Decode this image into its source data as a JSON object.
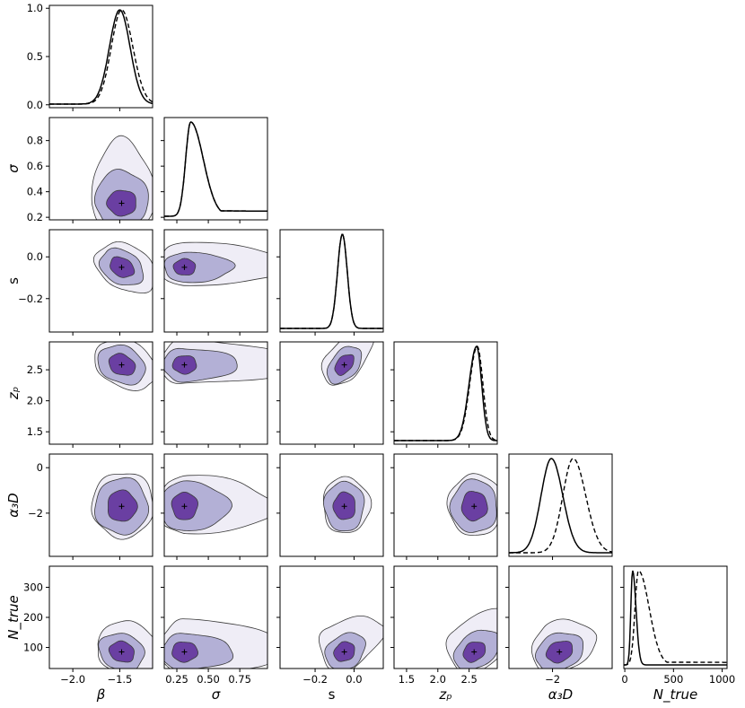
{
  "chart_data": {
    "type": "corner",
    "title": "",
    "parameters": [
      {
        "key": "beta",
        "label": "β",
        "range": [
          -2.25,
          -1.15
        ],
        "ticks": [
          -2.0,
          -1.5
        ],
        "tick_labels": [
          "−2.0",
          "−1.5"
        ],
        "best": -1.48,
        "peak": -1.48,
        "width": 0.11
      },
      {
        "key": "sigma",
        "label": "σ",
        "range": [
          0.15,
          0.97
        ],
        "ticks": [
          0.25,
          0.5,
          0.75
        ],
        "tick_labels": [
          "0.25",
          "0.50",
          "0.75"
        ],
        "best": 0.31,
        "peak": 0.36,
        "width": 0.06
      },
      {
        "key": "s",
        "label": "s",
        "range": [
          -0.38,
          0.15
        ],
        "ticks": [
          -0.2,
          0.0
        ],
        "tick_labels": [
          "−0.2",
          "0.0"
        ],
        "best": -0.05,
        "peak": -0.05,
        "width": 0.03
      },
      {
        "key": "zp",
        "label": "zₚ",
        "range": [
          1.3,
          2.95
        ],
        "ticks": [
          1.5,
          2.0,
          2.5
        ],
        "tick_labels": [
          "1.5",
          "2.0",
          "2.5"
        ],
        "best": 2.58,
        "peak": 2.62,
        "width": 0.08
      },
      {
        "key": "a3d",
        "label": "α₃D",
        "range": [
          -3.9,
          0.6
        ],
        "ticks": [
          -2.0
        ],
        "tick_labels": [
          "−2"
        ],
        "best": -1.7,
        "peak": -2.05,
        "width": 0.35
      },
      {
        "key": "ntrue",
        "label": "N_true",
        "range": [
          -10,
          1050
        ],
        "ticks": [
          0,
          500,
          1000
        ],
        "tick_labels": [
          "0",
          "500",
          "1000"
        ],
        "best": 85,
        "peak": 90,
        "width": 25
      }
    ],
    "y_axes": [
      {
        "param": "sigma",
        "range": [
          0.18,
          0.98
        ],
        "ticks": [
          0.2,
          0.4,
          0.6,
          0.8
        ],
        "tick_labels": [
          "0.2",
          "0.4",
          "0.6",
          "0.8"
        ]
      },
      {
        "param": "s",
        "range": [
          -0.36,
          0.13
        ],
        "ticks": [
          -0.2,
          0.0
        ],
        "tick_labels": [
          "−0.2",
          "0.0"
        ]
      },
      {
        "param": "zp",
        "range": [
          1.3,
          2.95
        ],
        "ticks": [
          1.5,
          2.0,
          2.5
        ],
        "tick_labels": [
          "1.5",
          "2.0",
          "2.5"
        ]
      },
      {
        "param": "a3d",
        "range": [
          -3.9,
          0.6
        ],
        "ticks": [
          -2,
          0
        ],
        "tick_labels": [
          "−2",
          "0"
        ]
      },
      {
        "param": "ntrue",
        "range": [
          30,
          370
        ],
        "ticks": [
          100,
          200,
          300
        ],
        "tick_labels": [
          "100",
          "200",
          "300"
        ]
      }
    ],
    "diag0_axis": {
      "range": [
        -0.03,
        1.03
      ],
      "ticks": [
        0.0,
        0.5,
        1.0
      ],
      "tick_labels": [
        "0.0",
        "0.5",
        "1.0"
      ]
    },
    "marginals": [
      {
        "param": "beta",
        "solid": {
          "peak": -1.5,
          "sl": 0.11,
          "sr": 0.11
        },
        "dashed": {
          "peak": -1.48,
          "sl": 0.11,
          "sr": 0.12
        }
      },
      {
        "param": "sigma",
        "solid": {
          "peak": 0.36,
          "sl": 0.04,
          "sr": 0.1,
          "tail": 0.06
        },
        "dashed": {
          "peak": 0.36,
          "sl": 0.04,
          "sr": 0.1,
          "tail": 0.06
        }
      },
      {
        "param": "s",
        "solid": {
          "peak": -0.06,
          "sl": 0.025,
          "sr": 0.025
        },
        "dashed": {
          "peak": -0.06,
          "sl": 0.025,
          "sr": 0.025
        }
      },
      {
        "param": "zp",
        "solid": {
          "peak": 2.62,
          "sl": 0.12,
          "sr": 0.08
        },
        "dashed": {
          "peak": 2.63,
          "sl": 0.12,
          "sr": 0.09
        }
      },
      {
        "param": "a3d",
        "solid": {
          "peak": -2.05,
          "sl": 0.45,
          "sr": 0.5
        },
        "dashed": {
          "peak": -1.1,
          "sl": 0.45,
          "sr": 0.55
        }
      },
      {
        "param": "ntrue",
        "solid": {
          "peak": 80,
          "sl": 18,
          "sr": 35
        },
        "dashed": {
          "peak": 140,
          "sl": 35,
          "sr": 110,
          "tail": 0.03
        }
      }
    ],
    "contour_levels": [
      "1σ",
      "2σ",
      "3σ"
    ],
    "contour_colors": {
      "outer": "#efedf6",
      "middle": "#b3b0d6",
      "inner": "#6a3fa2",
      "edge": "#3a3a3a"
    },
    "line_styles": {
      "solid": "posterior",
      "dashed": "prior/alternate"
    }
  }
}
